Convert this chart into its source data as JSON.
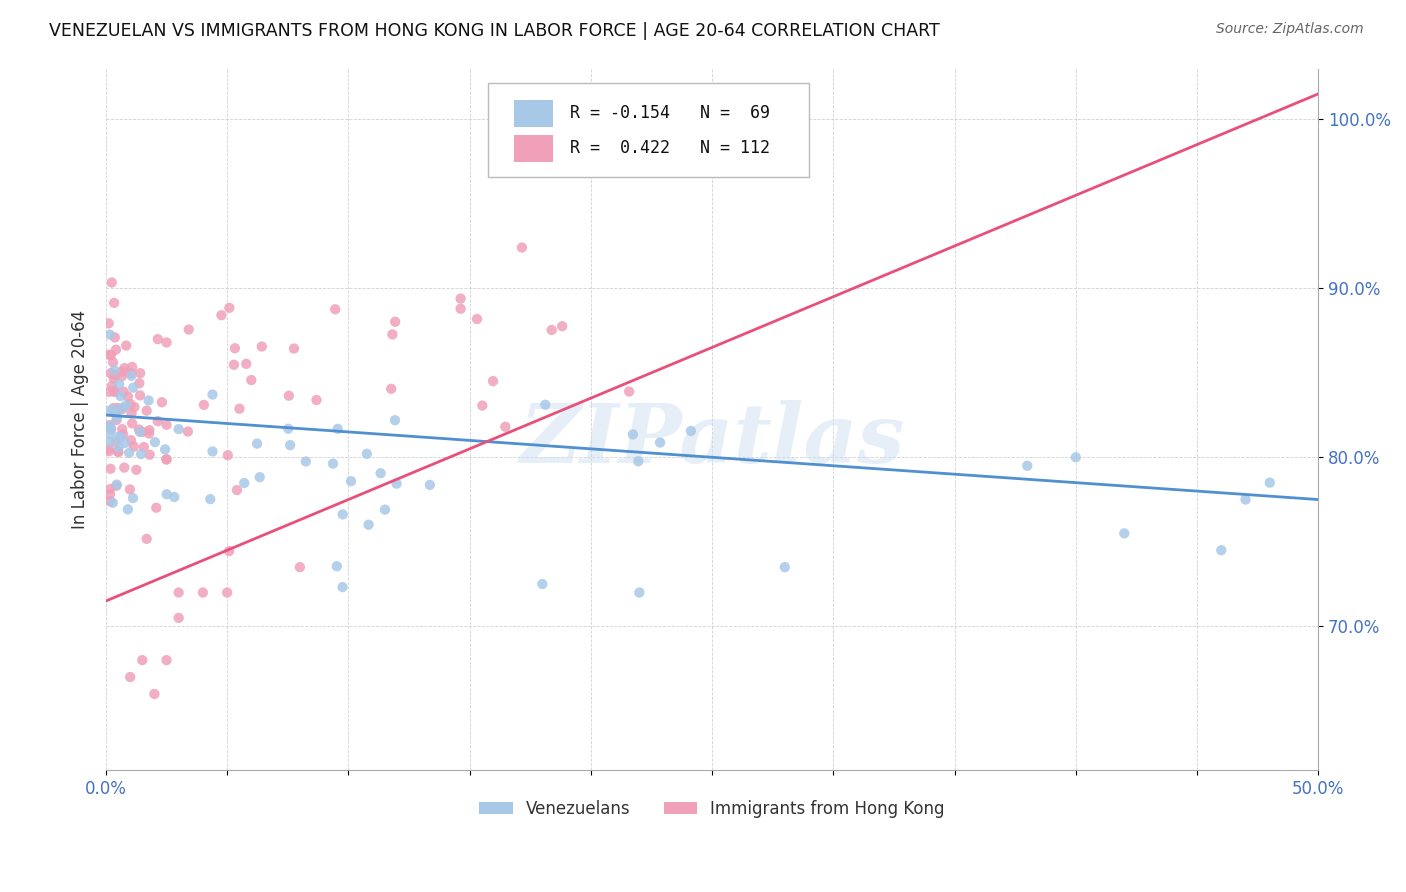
{
  "title": "VENEZUELAN VS IMMIGRANTS FROM HONG KONG IN LABOR FORCE | AGE 20-64 CORRELATION CHART",
  "source": "Source: ZipAtlas.com",
  "ylabel": "In Labor Force | Age 20-64",
  "y_ticks_labels": [
    "70.0%",
    "80.0%",
    "90.0%",
    "100.0%"
  ],
  "y_tick_vals": [
    0.7,
    0.8,
    0.9,
    1.0
  ],
  "x_lim": [
    0.0,
    0.5
  ],
  "y_lim": [
    0.615,
    1.03
  ],
  "legend_line1": "R = -0.154   N =  69",
  "legend_line2": "R =  0.422   N = 112",
  "color_venezuelan": "#a8c8e8",
  "color_hk": "#f0a0b8",
  "color_line_venezuelan": "#5090d0",
  "color_line_hk": "#e8507a",
  "watermark": "ZIPatlas",
  "background_color": "#ffffff",
  "ven_trend_x0": 0.0,
  "ven_trend_y0": 0.825,
  "ven_trend_x1": 0.5,
  "ven_trend_y1": 0.775,
  "hk_trend_x0": 0.0,
  "hk_trend_y0": 0.715,
  "hk_trend_x1": 0.5,
  "hk_trend_y1": 1.015
}
